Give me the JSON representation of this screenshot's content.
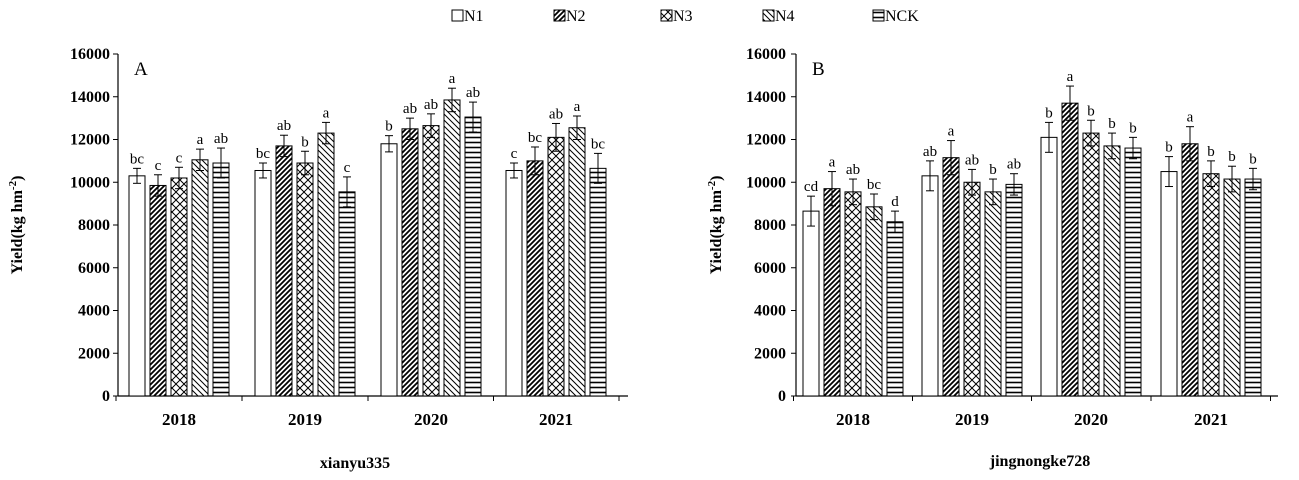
{
  "legend": [
    {
      "name": "N1",
      "pattern": "blank"
    },
    {
      "name": "N2",
      "pattern": "diag-dense"
    },
    {
      "name": "N3",
      "pattern": "crosshatch"
    },
    {
      "name": "N4",
      "pattern": "diag-light"
    },
    {
      "name": "NCK",
      "pattern": "horizontal"
    }
  ],
  "colors": {
    "bar_stroke": "#000000",
    "bar_fill": "#ffffff",
    "text": "#000000"
  },
  "chart_data": [
    {
      "type": "bar",
      "panel_label": "A",
      "xlabel": "xianyu335",
      "ylabel": "Yield(kg hm-2)",
      "ylabel_parts": {
        "main": "Yield(kg hm",
        "sup": "-2",
        "close": ")"
      },
      "ylim": [
        0,
        16000
      ],
      "yticks": [
        0,
        2000,
        4000,
        6000,
        8000,
        10000,
        12000,
        14000,
        16000
      ],
      "categories": [
        "2018",
        "2019",
        "2020",
        "2021"
      ],
      "series": [
        {
          "name": "N1",
          "values": [
            10300,
            10550,
            11800,
            10550
          ],
          "errors": [
            350,
            350,
            380,
            350
          ],
          "letters": [
            "bc",
            "bc",
            "b",
            "c"
          ]
        },
        {
          "name": "N2",
          "values": [
            9850,
            11700,
            12500,
            11000
          ],
          "errors": [
            500,
            500,
            500,
            650
          ],
          "letters": [
            "c",
            "ab",
            "ab",
            "bc"
          ]
        },
        {
          "name": "N3",
          "values": [
            10200,
            10900,
            12650,
            12100
          ],
          "errors": [
            500,
            550,
            550,
            650
          ],
          "letters": [
            "c",
            "b",
            "ab",
            "ab"
          ]
        },
        {
          "name": "N4",
          "values": [
            11050,
            12300,
            13850,
            12550
          ],
          "errors": [
            500,
            500,
            550,
            550
          ],
          "letters": [
            "a",
            "a",
            "a",
            "a"
          ]
        },
        {
          "name": "NCK",
          "values": [
            10900,
            9550,
            13050,
            10650
          ],
          "errors": [
            700,
            700,
            700,
            700
          ],
          "letters": [
            "ab",
            "c",
            "ab",
            "bc"
          ]
        }
      ]
    },
    {
      "type": "bar",
      "panel_label": "B",
      "xlabel": "jingnongke728",
      "ylabel": "Yield(kg hm-2)",
      "ylabel_parts": {
        "main": "Yield(kg hm",
        "sup": "-2",
        "close": ")"
      },
      "ylim": [
        0,
        16000
      ],
      "yticks": [
        0,
        2000,
        4000,
        6000,
        8000,
        10000,
        12000,
        14000,
        16000
      ],
      "categories": [
        "2018",
        "2019",
        "2020",
        "2021"
      ],
      "series": [
        {
          "name": "N1",
          "values": [
            8650,
            10300,
            12100,
            10500
          ],
          "errors": [
            700,
            700,
            700,
            700
          ],
          "letters": [
            "cd",
            "ab",
            "b",
            "b"
          ]
        },
        {
          "name": "N2",
          "values": [
            9700,
            11150,
            13700,
            11800
          ],
          "errors": [
            800,
            800,
            800,
            800
          ],
          "letters": [
            "a",
            "a",
            "a",
            "a"
          ]
        },
        {
          "name": "N3",
          "values": [
            9550,
            10000,
            12300,
            10400
          ],
          "errors": [
            600,
            600,
            600,
            600
          ],
          "letters": [
            "ab",
            "ab",
            "b",
            "b"
          ]
        },
        {
          "name": "N4",
          "values": [
            8850,
            9550,
            11700,
            10150
          ],
          "errors": [
            600,
            600,
            600,
            600
          ],
          "letters": [
            "bc",
            "b",
            "b",
            "b"
          ]
        },
        {
          "name": "NCK",
          "values": [
            8150,
            9900,
            11600,
            10150
          ],
          "errors": [
            500,
            500,
            500,
            500
          ],
          "letters": [
            "d",
            "ab",
            "b",
            "b"
          ]
        }
      ]
    }
  ]
}
